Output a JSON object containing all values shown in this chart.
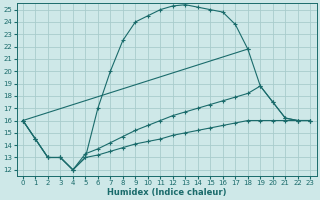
{
  "xlabel": "Humidex (Indice chaleur)",
  "bg_color": "#cee8e8",
  "grid_color": "#a8cccc",
  "line_color": "#1a6b6b",
  "xlim": [
    -0.5,
    23.5
  ],
  "ylim": [
    11.5,
    25.5
  ],
  "xticks": [
    0,
    1,
    2,
    3,
    4,
    5,
    6,
    7,
    8,
    9,
    10,
    11,
    12,
    13,
    14,
    15,
    16,
    17,
    18,
    19,
    20,
    21,
    22,
    23
  ],
  "yticks": [
    12,
    13,
    14,
    15,
    16,
    17,
    18,
    19,
    20,
    21,
    22,
    23,
    24,
    25
  ],
  "line1_x": [
    0,
    1,
    2,
    3,
    4,
    5,
    6,
    7,
    8,
    9,
    10,
    11,
    12,
    13,
    14,
    15,
    16,
    17,
    18
  ],
  "line1_y": [
    16.0,
    14.5,
    13.0,
    13.0,
    12.0,
    13.0,
    17.0,
    20.0,
    22.5,
    24.0,
    24.5,
    25.0,
    25.3,
    25.4,
    25.2,
    25.0,
    24.8,
    23.8,
    21.8
  ],
  "line2_x": [
    0,
    18,
    19,
    20,
    21,
    22,
    23
  ],
  "line2_y": [
    16.0,
    21.8,
    18.8,
    17.5,
    16.2,
    16.0,
    16.0
  ],
  "line3_x": [
    0,
    1,
    2,
    3,
    4,
    5,
    6,
    7,
    8,
    9,
    10,
    11,
    12,
    13,
    14,
    15,
    16,
    17,
    18,
    19,
    20,
    21,
    22,
    23
  ],
  "line3_y": [
    16.0,
    14.5,
    13.0,
    13.0,
    12.0,
    13.3,
    13.7,
    14.2,
    14.7,
    15.2,
    15.6,
    16.0,
    16.4,
    16.7,
    17.0,
    17.3,
    17.6,
    17.9,
    18.2,
    18.8,
    17.5,
    16.2,
    16.0,
    16.0
  ],
  "line4_x": [
    0,
    1,
    2,
    3,
    4,
    5,
    6,
    7,
    8,
    9,
    10,
    11,
    12,
    13,
    14,
    15,
    16,
    17,
    18,
    19,
    20,
    21,
    22,
    23
  ],
  "line4_y": [
    16.0,
    14.5,
    13.0,
    13.0,
    12.0,
    13.0,
    13.2,
    13.5,
    13.8,
    14.1,
    14.3,
    14.5,
    14.8,
    15.0,
    15.2,
    15.4,
    15.6,
    15.8,
    16.0,
    16.0,
    16.0,
    16.0,
    16.0,
    16.0
  ]
}
